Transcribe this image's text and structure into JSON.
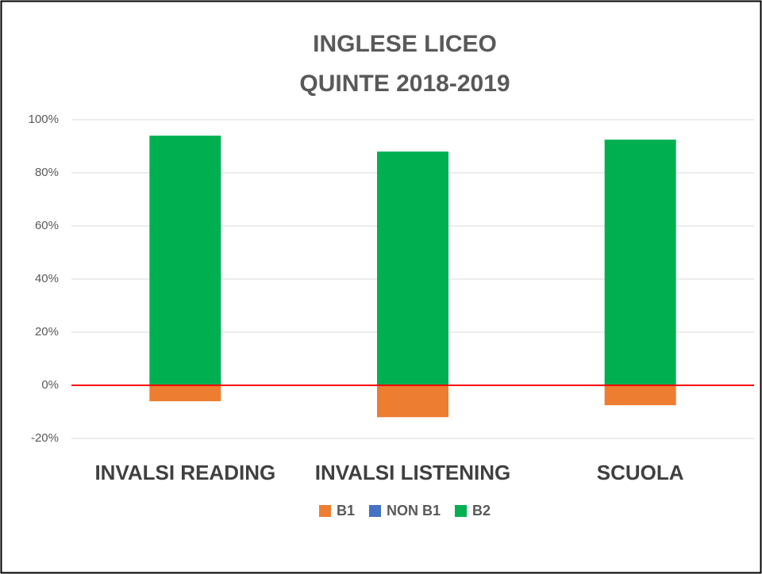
{
  "chart_data": {
    "type": "stacked_bar",
    "title": [
      "INGLESE LICEO",
      "QUINTE 2018-2019"
    ],
    "categories": [
      "INVALSI READING",
      "INVALSI LISTENING",
      "SCUOLA"
    ],
    "series": [
      {
        "name": "B1",
        "color": "#ed7d31",
        "values": [
          -6,
          -12,
          -7.5
        ]
      },
      {
        "name": "NON B1",
        "color": "#4472c4",
        "values": [
          0,
          0,
          0
        ]
      },
      {
        "name": "B2",
        "color": "#00b050",
        "values": [
          94,
          88,
          92.5
        ]
      }
    ],
    "ylim": [
      -20,
      100
    ],
    "yticks": [
      {
        "value": -20,
        "label": "-20%"
      },
      {
        "value": 0,
        "label": "0%"
      },
      {
        "value": 20,
        "label": "20%"
      },
      {
        "value": 40,
        "label": "40%"
      },
      {
        "value": 60,
        "label": "60%"
      },
      {
        "value": 80,
        "label": "80%"
      },
      {
        "value": 100,
        "label": "100%"
      }
    ],
    "grid": true,
    "zero_line_color": "#ff0000",
    "legend": "bottom"
  }
}
